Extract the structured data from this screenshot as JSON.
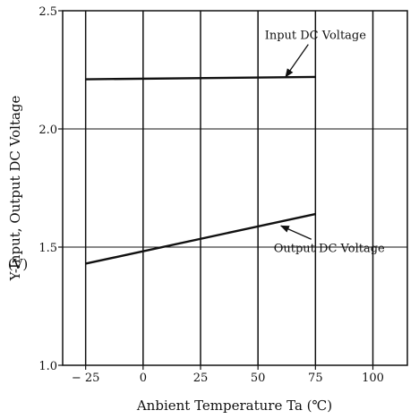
{
  "chart_data": {
    "type": "line",
    "xlabel": "Anbient Temperature Ta (℃)",
    "ylabel": "Y-Input, Output DC Voltage",
    "yunit": "(V)",
    "xlim": [
      -35,
      115
    ],
    "ylim": [
      1.0,
      2.5
    ],
    "x_ticks": [
      -25,
      0,
      25,
      50,
      75,
      100
    ],
    "x_tick_labels": [
      "− 25",
      "0",
      "25",
      "50",
      "75",
      "100"
    ],
    "y_ticks": [
      1.0,
      1.5,
      2.0,
      2.5
    ],
    "y_tick_labels": [
      "1.0",
      "1.5",
      "2.0",
      "2.5"
    ],
    "grid": true,
    "series": [
      {
        "name": "Input DC Voltage",
        "x": [
          -25,
          75
        ],
        "y": [
          2.21,
          2.22
        ]
      },
      {
        "name": "Output DC Voltage",
        "x": [
          -25,
          75
        ],
        "y": [
          1.43,
          1.64
        ]
      }
    ],
    "annotations": [
      {
        "text": "Input DC Voltage",
        "target_series": 0,
        "x": 62,
        "y": 2.22,
        "text_x": 75,
        "text_y": 2.38
      },
      {
        "text": "Output DC Voltage",
        "target_series": 1,
        "x": 60,
        "y": 1.59,
        "text_x": 81,
        "text_y": 1.48
      }
    ],
    "colors": {
      "line": "#111111",
      "grid": "#111111"
    }
  }
}
